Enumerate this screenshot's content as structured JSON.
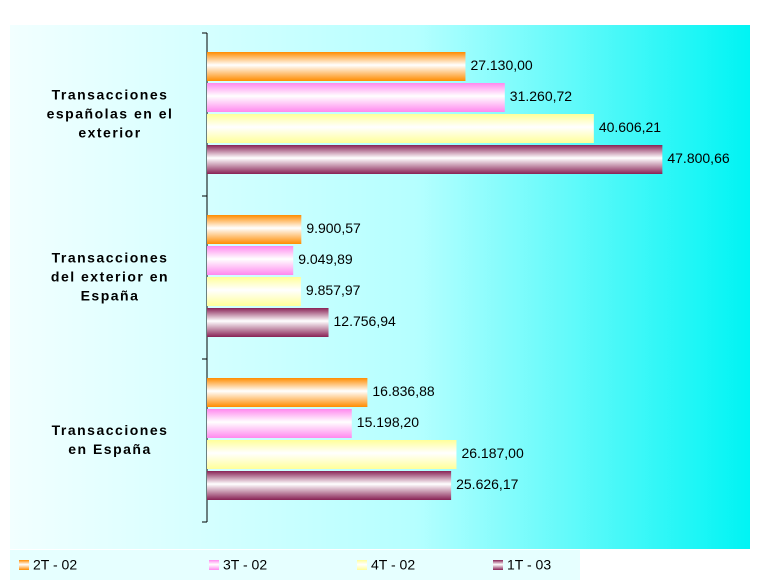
{
  "chart_data": {
    "type": "hbar",
    "categories": [
      "Transacciones\nespañolas en el\nexterior",
      "Transacciones\ndel exterior en\nEspaña",
      "Transacciones\nen España"
    ],
    "series": [
      {
        "name": "2T - 02",
        "color": "#ff8c00",
        "values": [
          27130.0,
          9900.57,
          16836.88
        ],
        "value_labels": [
          "27.130,00",
          "9.900,57",
          "16.836,88"
        ]
      },
      {
        "name": "3T - 02",
        "color": "#ff88ee",
        "values": [
          31260.72,
          9049.89,
          15198.2
        ],
        "value_labels": [
          "31.260,72",
          "9.049,89",
          "15.198,20"
        ]
      },
      {
        "name": "4T - 02",
        "color": "#ffff99",
        "values": [
          40606.21,
          9857.97,
          26187.0
        ],
        "value_labels": [
          "40.606,21",
          "9.857,97",
          "26.187,00"
        ]
      },
      {
        "name": "1T - 03",
        "color": "#882255",
        "values": [
          47800.66,
          12756.94,
          25626.17
        ],
        "value_labels": [
          "47.800,66",
          "12.756,94",
          "25.626,17"
        ]
      }
    ],
    "xlim": [
      0,
      57000
    ]
  }
}
